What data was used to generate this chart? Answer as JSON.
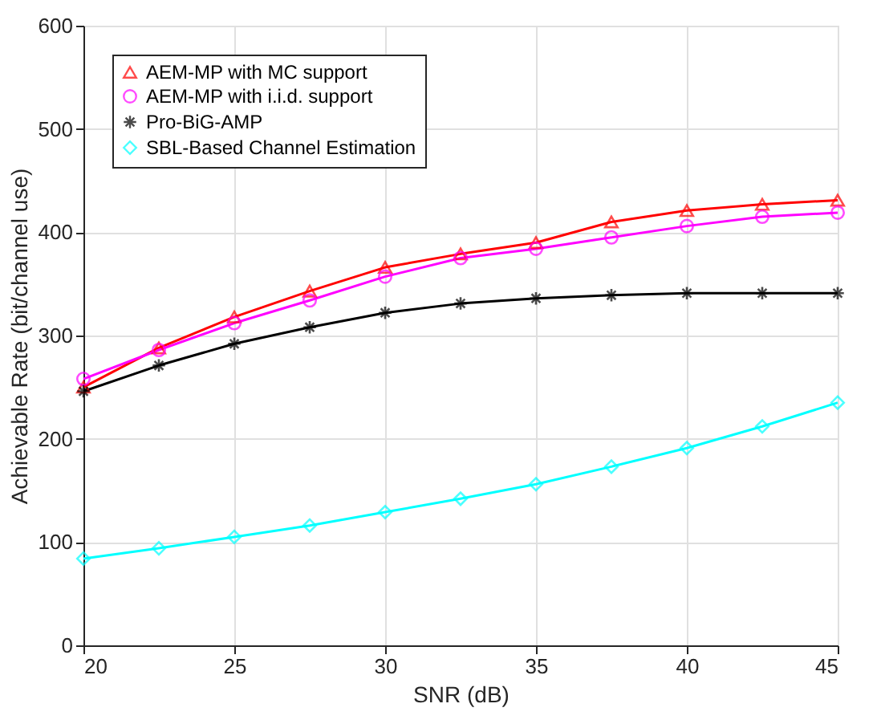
{
  "chart_data": {
    "type": "line",
    "xlabel": "SNR (dB)",
    "ylabel": "Achievable Rate (bit/channel use)",
    "x": [
      20,
      22.5,
      25,
      27.5,
      30,
      32.5,
      35,
      37.5,
      40,
      42.5,
      45
    ],
    "xlim": [
      20,
      45
    ],
    "xticks": [
      20,
      25,
      30,
      35,
      40,
      45
    ],
    "ylim": [
      0,
      600
    ],
    "yticks": [
      0,
      100,
      200,
      300,
      400,
      500,
      600
    ],
    "grid": true,
    "legend": "top left",
    "line_style": "solid",
    "series": [
      {
        "name": "AEM-MP with MC support",
        "color": "#ff0000",
        "marker": "triangle",
        "values": [
          250,
          288,
          318,
          343,
          366,
          379,
          390,
          410,
          421,
          427,
          431
        ]
      },
      {
        "name": "AEM-MP with i.i.d. support",
        "color": "#ff00ff",
        "marker": "circle",
        "values": [
          258,
          286,
          312,
          334,
          357,
          375,
          384,
          395,
          406,
          415,
          419
        ]
      },
      {
        "name": "Pro-BiG-AMP",
        "color": "#000000",
        "marker": "cross",
        "values": [
          246,
          271,
          292,
          308,
          322,
          331,
          336,
          339,
          341,
          341,
          341
        ]
      },
      {
        "name": "SBL-Based Channel Estimation",
        "color": "#00ffff",
        "marker": "diamond",
        "values": [
          84,
          94,
          105,
          116,
          129,
          142,
          156,
          173,
          191,
          212,
          235
        ]
      }
    ]
  }
}
